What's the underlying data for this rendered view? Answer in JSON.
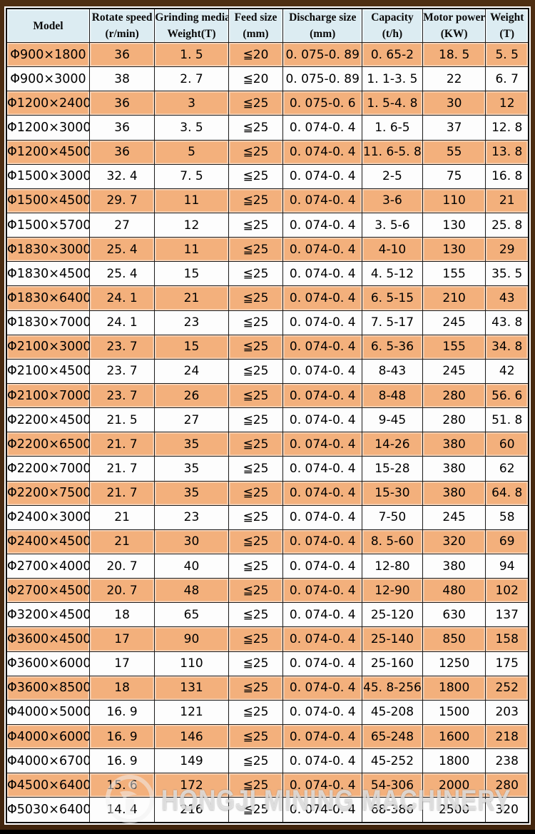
{
  "table": {
    "columns": [
      {
        "line1": "Model",
        "line2": ""
      },
      {
        "line1": "Rotate speed",
        "line2": "(r/min)"
      },
      {
        "line1": "Grinding media",
        "line2": "Weight(T)"
      },
      {
        "line1": "Feed size",
        "line2": "(mm)"
      },
      {
        "line1": "Discharge size",
        "line2": "(mm)"
      },
      {
        "line1": "Capacity",
        "line2": "(t/h)"
      },
      {
        "line1": "Motor power",
        "line2": "(KW)"
      },
      {
        "line1": "Weight",
        "line2": "(T)"
      }
    ],
    "rows": [
      [
        "Φ900×1800",
        "36",
        "1. 5",
        "≦20",
        "0. 075-0. 89",
        "0. 65-2",
        "18. 5",
        "5. 5"
      ],
      [
        "Φ900×3000",
        "38",
        "2. 7",
        "≦20",
        "0. 075-0. 89",
        "1. 1-3. 5",
        "22",
        "6. 7"
      ],
      [
        "Φ1200×2400",
        "36",
        "3",
        "≦25",
        "0. 075-0. 6",
        "1. 5-4. 8",
        "30",
        "12"
      ],
      [
        "Φ1200×3000",
        "36",
        "3. 5",
        "≦25",
        "0. 074-0. 4",
        "1. 6-5",
        "37",
        "12. 8"
      ],
      [
        "Φ1200×4500",
        "36",
        "5",
        "≦25",
        "0. 074-0. 4",
        "11. 6-5. 8",
        "55",
        "13. 8"
      ],
      [
        "Φ1500×3000",
        "32. 4",
        "7. 5",
        "≦25",
        "0. 074-0. 4",
        "2-5",
        "75",
        "16. 8"
      ],
      [
        "Φ1500×4500",
        "29. 7",
        "11",
        "≦25",
        "0. 074-0. 4",
        "3-6",
        "110",
        "21"
      ],
      [
        "Φ1500×5700",
        "27",
        "12",
        "≦25",
        "0. 074-0. 4",
        "3. 5-6",
        "130",
        "25. 8"
      ],
      [
        "Φ1830×3000",
        "25. 4",
        "11",
        "≦25",
        "0. 074-0. 4",
        "4-10",
        "130",
        "29"
      ],
      [
        "Φ1830×4500",
        "25. 4",
        "15",
        "≦25",
        "0. 074-0. 4",
        "4. 5-12",
        "155",
        "35. 5"
      ],
      [
        "Φ1830×6400",
        "24. 1",
        "21",
        "≦25",
        "0. 074-0. 4",
        "6. 5-15",
        "210",
        "43"
      ],
      [
        "Φ1830×7000",
        "24. 1",
        "23",
        "≦25",
        "0. 074-0. 4",
        "7. 5-17",
        "245",
        "43. 8"
      ],
      [
        "Φ2100×3000",
        "23. 7",
        "15",
        "≦25",
        "0. 074-0. 4",
        "6. 5-36",
        "155",
        "34. 8"
      ],
      [
        "Φ2100×4500",
        "23. 7",
        "24",
        "≦25",
        "0. 074-0. 4",
        "8-43",
        "245",
        "42"
      ],
      [
        "Φ2100×7000",
        "23. 7",
        "26",
        "≦25",
        "0. 074-0. 4",
        "8-48",
        "280",
        "56. 6"
      ],
      [
        "Φ2200×4500",
        "21. 5",
        "27",
        "≦25",
        "0. 074-0. 4",
        "9-45",
        "280",
        "51. 8"
      ],
      [
        "Φ2200×6500",
        "21. 7",
        "35",
        "≦25",
        "0. 074-0. 4",
        "14-26",
        "380",
        "60"
      ],
      [
        "Φ2200×7000",
        "21. 7",
        "35",
        "≦25",
        "0. 074-0. 4",
        "15-28",
        "380",
        "62"
      ],
      [
        "Φ2200×7500",
        "21. 7",
        "35",
        "≦25",
        "0. 074-0. 4",
        "15-30",
        "380",
        "64. 8"
      ],
      [
        "Φ2400×3000",
        "21",
        "23",
        "≦25",
        "0. 074-0. 4",
        "7-50",
        "245",
        "58"
      ],
      [
        "Φ2400×4500",
        "21",
        "30",
        "≦25",
        "0. 074-0. 4",
        "8. 5-60",
        "320",
        "69"
      ],
      [
        "Φ2700×4000",
        "20. 7",
        "40",
        "≦25",
        "0. 074-0. 4",
        "12-80",
        "380",
        "94"
      ],
      [
        "Φ2700×4500",
        "20. 7",
        "48",
        "≦25",
        "0. 074-0. 4",
        "12-90",
        "480",
        "102"
      ],
      [
        "Φ3200×4500",
        "18",
        "65",
        "≦25",
        "0. 074-0. 4",
        "25-120",
        "630",
        "137"
      ],
      [
        "Φ3600×4500",
        "17",
        "90",
        "≦25",
        "0. 074-0. 4",
        "25-140",
        "850",
        "158"
      ],
      [
        "Φ3600×6000",
        "17",
        "110",
        "≦25",
        "0. 074-0. 4",
        "25-160",
        "1250",
        "175"
      ],
      [
        "Φ3600×8500",
        "18",
        "131",
        "≦25",
        "0. 074-0. 4",
        "45. 8-256",
        "1800",
        "252"
      ],
      [
        "Φ4000×5000",
        "16. 9",
        "121",
        "≦25",
        "0. 074-0. 4",
        "45-208",
        "1500",
        "203"
      ],
      [
        "Φ4000×6000",
        "16. 9",
        "146",
        "≦25",
        "0. 074-0. 4",
        "65-248",
        "1600",
        "218"
      ],
      [
        "Φ4000×6700",
        "16. 9",
        "149",
        "≦25",
        "0. 074-0. 4",
        "45-252",
        "1800",
        "238"
      ],
      [
        "Φ4500×6400",
        "15. 6",
        "172",
        "≦25",
        "0. 074-0. 4",
        "54-306",
        "2000",
        "280"
      ],
      [
        "Φ5030×6400",
        "14. 4",
        "216",
        "≦25",
        "0. 074-0. 4",
        "68-386",
        "2500",
        "320"
      ]
    ]
  },
  "watermark": {
    "text": "HONGJI MINING MACHINERY",
    "logo": "hongji-logo"
  },
  "colors": {
    "frame_brown": "#46290f",
    "header_blue": "#dcecf2",
    "row_orange": "#f3b07c",
    "row_white": "#fdfdfd",
    "grid_black": "#1b1b1b"
  }
}
